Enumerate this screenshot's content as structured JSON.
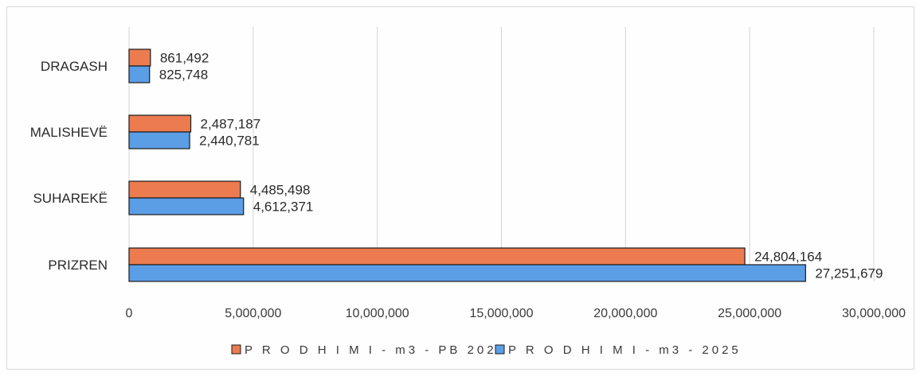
{
  "chart_data": {
    "type": "bar",
    "orientation": "horizontal",
    "categories": [
      "DRAGASH",
      "MALISHEVË",
      "SUHAREKË",
      "PRIZREN"
    ],
    "series": [
      {
        "name": "P R O D H I M I  -  m3 - PB 2025",
        "color": "#ec7c50",
        "values": [
          861492,
          2487187,
          4485498,
          24804164
        ],
        "labels": [
          "861,492",
          "2,487,187",
          "4,485,498",
          "24,804,164"
        ]
      },
      {
        "name": "P R O D H I M I  -  m3 - 2025",
        "color": "#5b9ee6",
        "values": [
          825748,
          2440781,
          4612371,
          27251679
        ],
        "labels": [
          "825,748",
          "2,440,781",
          "4,612,371",
          "27,251,679"
        ]
      }
    ],
    "xlim": [
      0,
      30000000
    ],
    "x_ticks": [
      0,
      5000000,
      10000000,
      15000000,
      20000000,
      25000000,
      30000000
    ],
    "x_tick_labels": [
      "0",
      "5,000,000",
      "10,000,000",
      "15,000,000",
      "20,000,000",
      "25,000,000",
      "30,000,000"
    ],
    "grid": true,
    "legend_position": "bottom"
  }
}
